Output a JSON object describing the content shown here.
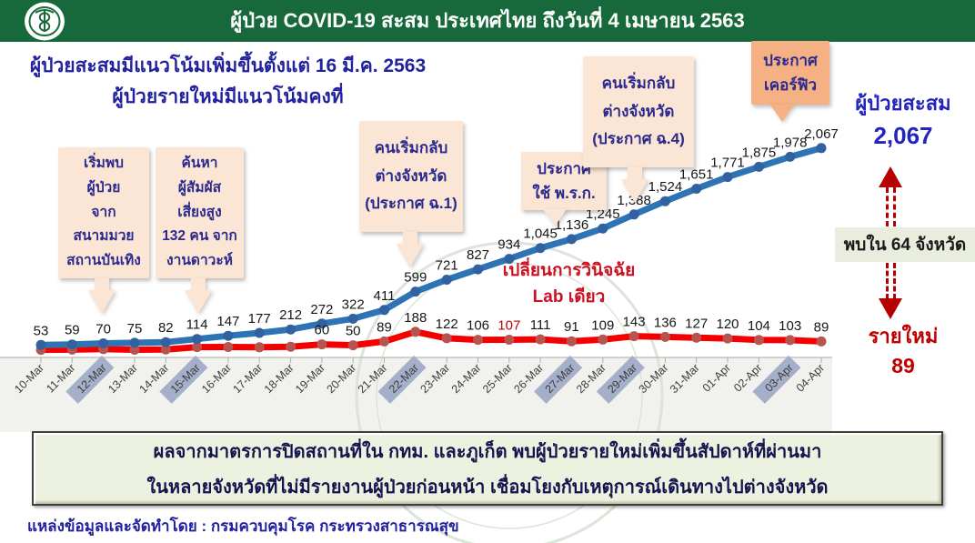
{
  "header": {
    "title": "ผู้ป่วย COVID-19 สะสม  ประเทศไทย ถึงวันที่ 4 เมษายน 2563",
    "logo": "ministry-of-public-health-seal"
  },
  "subtitle": {
    "line1": "ผู้ป่วยสะสมมีแนวโน้มเพิ่มขึ้นตั้งแต่ 16 มี.ค. 2563",
    "line2": "ผู้ป่วยรายใหม่มีแนวโน้มคงที่"
  },
  "chart_data": {
    "type": "line",
    "x": [
      "10-Mar",
      "11-Mar",
      "12-Mar",
      "13-Mar",
      "14-Mar",
      "15-Mar",
      "16-Mar",
      "17-Mar",
      "18-Mar",
      "19-Mar",
      "20-Mar",
      "21-Mar",
      "22-Mar",
      "23-Mar",
      "24-Mar",
      "25-Mar",
      "26-Mar",
      "27-Mar",
      "28-Mar",
      "29-Mar",
      "30-Mar",
      "31-Mar",
      "01-Apr",
      "02-Apr",
      "03-Apr",
      "04-Apr"
    ],
    "series": [
      {
        "name": "ผู้ป่วยสะสม",
        "color": "#2E74B5",
        "point_color": "#31619F",
        "values": [
          53,
          59,
          70,
          75,
          82,
          114,
          147,
          177,
          212,
          272,
          322,
          411,
          599,
          721,
          827,
          934,
          1045,
          1136,
          1245,
          1388,
          1524,
          1651,
          1771,
          1875,
          1978,
          2067
        ],
        "label_start_index": 0
      },
      {
        "name": "รายใหม่",
        "color": "#F40000",
        "point_color": "#B85450",
        "values": [
          4,
          6,
          11,
          5,
          7,
          32,
          33,
          30,
          35,
          60,
          50,
          89,
          188,
          122,
          106,
          107,
          111,
          91,
          109,
          143,
          136,
          127,
          120,
          104,
          103,
          89
        ],
        "label_start_index": 9
      }
    ],
    "highlighted_dates": [
      "12-Mar",
      "15-Mar",
      "22-Mar",
      "27-Mar",
      "29-Mar",
      "03-Apr"
    ],
    "red_colored_label": {
      "date": "25-Mar",
      "index": 15,
      "value": 107
    },
    "ylim": [
      0,
      2200
    ],
    "grid": false,
    "legend_position": "none",
    "note": {
      "line1": "เปลี่ยนการวินิจฉัย",
      "line2": "Lab เดียว"
    }
  },
  "annotations": [
    {
      "text": "เริ่มพบ\nผู้ป่วย\nจาก\nสนามมวย\nสถานบันเทิง",
      "points_to": "12-Mar"
    },
    {
      "text": "ค้นหา\nผู้สัมผัส\nเสี่ยงสูง\n132 คน จาก\nงานดาวะห์",
      "points_to": "15-Mar"
    },
    {
      "text": "คนเริ่มกลับ\nต่างจังหวัด\n(ประกาศ ฉ.1)",
      "points_to": "22-Mar"
    },
    {
      "text": "ประกาศ\nใช้ พ.ร.ก.",
      "points_to": "26-Mar"
    },
    {
      "text": "คนเริ่มกลับ\nต่างจังหวัด\n(ประกาศ ฉ.4)",
      "points_to": "29-Mar"
    },
    {
      "text": "ประกาศ\nเคอร์ฟิว",
      "points_to": "03-Apr"
    }
  ],
  "right_panel": {
    "cumulative_label": "ผู้ป่วยสะสม",
    "cumulative_value": "2,067",
    "provinces": "พบใน 64 จังหวัด",
    "new_label": "รายใหม่",
    "new_value": "89"
  },
  "bottom_note": {
    "line1": "ผลจากมาตรการปิดสถานที่ใน กทม. และภูเก็ต พบผู้ป่วยรายใหม่เพิ่มขึ้นสัปดาห์ที่ผ่านมา",
    "line2": "ในหลายจังหวัดที่ไม่มีรายงานผู้ป่วยก่อนหน้า เชื่อมโยงกับเหตุการณ์เดินทางไปต่างจังหวัด"
  },
  "footer": {
    "source": "แหล่งข้อมูลและจัดทำโดย : กรมควบคุมโรค กระทรวงสาธารณสุข"
  },
  "colors": {
    "header_green": "#17693B",
    "navy": "#22229E",
    "blue_line": "#2E74B5",
    "red_line": "#F40000",
    "annotation_bg": "#FBE5D4",
    "annotation_dark_bg": "#F5B183",
    "highlight_date_bg": "#A6AFC9",
    "arrow_red": "#B40000",
    "province_band_bg": "#E9EDDD",
    "bottom_box_bg": "#EDF2E0"
  }
}
